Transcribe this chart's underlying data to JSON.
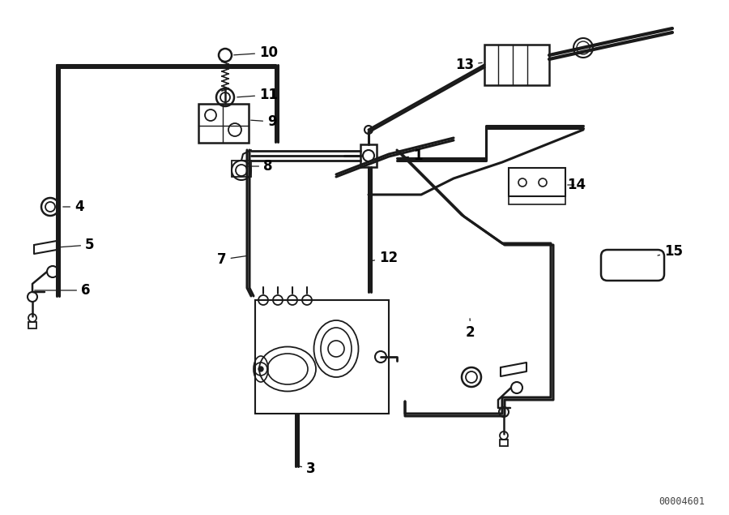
{
  "bg_color": "#ffffff",
  "line_color": "#1a1a1a",
  "label_color": "#000000",
  "watermark": "00004601",
  "figsize": [
    9.0,
    6.35
  ],
  "dpi": 100
}
